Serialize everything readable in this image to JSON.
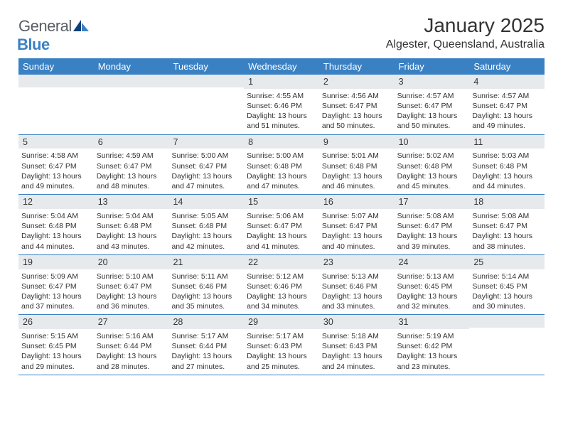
{
  "brand": {
    "part1": "General",
    "part2": "Blue"
  },
  "title": "January 2025",
  "location": "Algester, Queensland, Australia",
  "colors": {
    "accent": "#3a81c4",
    "band": "#e7eaed",
    "text": "#333333",
    "bg": "#ffffff"
  },
  "typography": {
    "title_fontsize": 28,
    "location_fontsize": 16,
    "header_fontsize": 13,
    "daynum_fontsize": 12.5,
    "body_fontsize": 10.5,
    "font_family": "Arial"
  },
  "day_headers": [
    "Sunday",
    "Monday",
    "Tuesday",
    "Wednesday",
    "Thursday",
    "Friday",
    "Saturday"
  ],
  "weeks": [
    [
      {
        "n": "",
        "sunrise": "",
        "sunset": "",
        "daylight": ""
      },
      {
        "n": "",
        "sunrise": "",
        "sunset": "",
        "daylight": ""
      },
      {
        "n": "",
        "sunrise": "",
        "sunset": "",
        "daylight": ""
      },
      {
        "n": "1",
        "sunrise": "Sunrise: 4:55 AM",
        "sunset": "Sunset: 6:46 PM",
        "daylight": "Daylight: 13 hours and 51 minutes."
      },
      {
        "n": "2",
        "sunrise": "Sunrise: 4:56 AM",
        "sunset": "Sunset: 6:47 PM",
        "daylight": "Daylight: 13 hours and 50 minutes."
      },
      {
        "n": "3",
        "sunrise": "Sunrise: 4:57 AM",
        "sunset": "Sunset: 6:47 PM",
        "daylight": "Daylight: 13 hours and 50 minutes."
      },
      {
        "n": "4",
        "sunrise": "Sunrise: 4:57 AM",
        "sunset": "Sunset: 6:47 PM",
        "daylight": "Daylight: 13 hours and 49 minutes."
      }
    ],
    [
      {
        "n": "5",
        "sunrise": "Sunrise: 4:58 AM",
        "sunset": "Sunset: 6:47 PM",
        "daylight": "Daylight: 13 hours and 49 minutes."
      },
      {
        "n": "6",
        "sunrise": "Sunrise: 4:59 AM",
        "sunset": "Sunset: 6:47 PM",
        "daylight": "Daylight: 13 hours and 48 minutes."
      },
      {
        "n": "7",
        "sunrise": "Sunrise: 5:00 AM",
        "sunset": "Sunset: 6:47 PM",
        "daylight": "Daylight: 13 hours and 47 minutes."
      },
      {
        "n": "8",
        "sunrise": "Sunrise: 5:00 AM",
        "sunset": "Sunset: 6:48 PM",
        "daylight": "Daylight: 13 hours and 47 minutes."
      },
      {
        "n": "9",
        "sunrise": "Sunrise: 5:01 AM",
        "sunset": "Sunset: 6:48 PM",
        "daylight": "Daylight: 13 hours and 46 minutes."
      },
      {
        "n": "10",
        "sunrise": "Sunrise: 5:02 AM",
        "sunset": "Sunset: 6:48 PM",
        "daylight": "Daylight: 13 hours and 45 minutes."
      },
      {
        "n": "11",
        "sunrise": "Sunrise: 5:03 AM",
        "sunset": "Sunset: 6:48 PM",
        "daylight": "Daylight: 13 hours and 44 minutes."
      }
    ],
    [
      {
        "n": "12",
        "sunrise": "Sunrise: 5:04 AM",
        "sunset": "Sunset: 6:48 PM",
        "daylight": "Daylight: 13 hours and 44 minutes."
      },
      {
        "n": "13",
        "sunrise": "Sunrise: 5:04 AM",
        "sunset": "Sunset: 6:48 PM",
        "daylight": "Daylight: 13 hours and 43 minutes."
      },
      {
        "n": "14",
        "sunrise": "Sunrise: 5:05 AM",
        "sunset": "Sunset: 6:48 PM",
        "daylight": "Daylight: 13 hours and 42 minutes."
      },
      {
        "n": "15",
        "sunrise": "Sunrise: 5:06 AM",
        "sunset": "Sunset: 6:47 PM",
        "daylight": "Daylight: 13 hours and 41 minutes."
      },
      {
        "n": "16",
        "sunrise": "Sunrise: 5:07 AM",
        "sunset": "Sunset: 6:47 PM",
        "daylight": "Daylight: 13 hours and 40 minutes."
      },
      {
        "n": "17",
        "sunrise": "Sunrise: 5:08 AM",
        "sunset": "Sunset: 6:47 PM",
        "daylight": "Daylight: 13 hours and 39 minutes."
      },
      {
        "n": "18",
        "sunrise": "Sunrise: 5:08 AM",
        "sunset": "Sunset: 6:47 PM",
        "daylight": "Daylight: 13 hours and 38 minutes."
      }
    ],
    [
      {
        "n": "19",
        "sunrise": "Sunrise: 5:09 AM",
        "sunset": "Sunset: 6:47 PM",
        "daylight": "Daylight: 13 hours and 37 minutes."
      },
      {
        "n": "20",
        "sunrise": "Sunrise: 5:10 AM",
        "sunset": "Sunset: 6:47 PM",
        "daylight": "Daylight: 13 hours and 36 minutes."
      },
      {
        "n": "21",
        "sunrise": "Sunrise: 5:11 AM",
        "sunset": "Sunset: 6:46 PM",
        "daylight": "Daylight: 13 hours and 35 minutes."
      },
      {
        "n": "22",
        "sunrise": "Sunrise: 5:12 AM",
        "sunset": "Sunset: 6:46 PM",
        "daylight": "Daylight: 13 hours and 34 minutes."
      },
      {
        "n": "23",
        "sunrise": "Sunrise: 5:13 AM",
        "sunset": "Sunset: 6:46 PM",
        "daylight": "Daylight: 13 hours and 33 minutes."
      },
      {
        "n": "24",
        "sunrise": "Sunrise: 5:13 AM",
        "sunset": "Sunset: 6:45 PM",
        "daylight": "Daylight: 13 hours and 32 minutes."
      },
      {
        "n": "25",
        "sunrise": "Sunrise: 5:14 AM",
        "sunset": "Sunset: 6:45 PM",
        "daylight": "Daylight: 13 hours and 30 minutes."
      }
    ],
    [
      {
        "n": "26",
        "sunrise": "Sunrise: 5:15 AM",
        "sunset": "Sunset: 6:45 PM",
        "daylight": "Daylight: 13 hours and 29 minutes."
      },
      {
        "n": "27",
        "sunrise": "Sunrise: 5:16 AM",
        "sunset": "Sunset: 6:44 PM",
        "daylight": "Daylight: 13 hours and 28 minutes."
      },
      {
        "n": "28",
        "sunrise": "Sunrise: 5:17 AM",
        "sunset": "Sunset: 6:44 PM",
        "daylight": "Daylight: 13 hours and 27 minutes."
      },
      {
        "n": "29",
        "sunrise": "Sunrise: 5:17 AM",
        "sunset": "Sunset: 6:43 PM",
        "daylight": "Daylight: 13 hours and 25 minutes."
      },
      {
        "n": "30",
        "sunrise": "Sunrise: 5:18 AM",
        "sunset": "Sunset: 6:43 PM",
        "daylight": "Daylight: 13 hours and 24 minutes."
      },
      {
        "n": "31",
        "sunrise": "Sunrise: 5:19 AM",
        "sunset": "Sunset: 6:42 PM",
        "daylight": "Daylight: 13 hours and 23 minutes."
      },
      {
        "n": "",
        "sunrise": "",
        "sunset": "",
        "daylight": ""
      }
    ]
  ]
}
